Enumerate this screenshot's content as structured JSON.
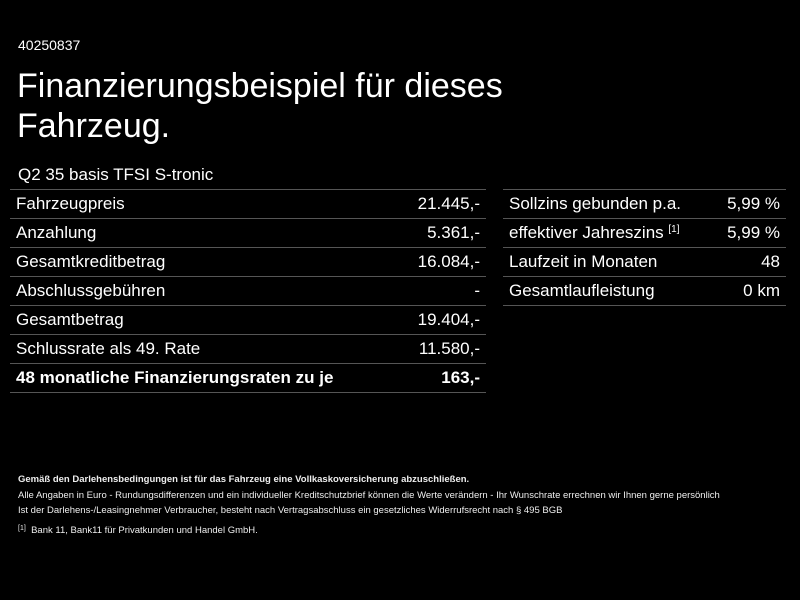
{
  "id": "40250837",
  "title": "Finanzierungsbeispiel für dieses Fahrzeug.",
  "model": "Q2 35 basis TFSI S-tronic",
  "left_rows": [
    {
      "label": "Fahrzeugpreis",
      "value": "21.445,-"
    },
    {
      "label": "Anzahlung",
      "value": "5.361,-"
    },
    {
      "label": "Gesamtkreditbetrag",
      "value": "16.084,-"
    },
    {
      "label": "Abschlussgebühren",
      "value": "-"
    },
    {
      "label": "Gesamtbetrag",
      "value": "19.404,-"
    },
    {
      "label": "Schlussrate als 49. Rate",
      "value": "11.580,-"
    },
    {
      "label": "48 monatliche Finanzierungsraten zu je",
      "value": "163,-"
    }
  ],
  "right_rows": [
    {
      "label": "Sollzins gebunden p.a.",
      "value": "5,99 %"
    },
    {
      "label": "effektiver Jahreszins",
      "sup": "[1]",
      "value": "5,99 %"
    },
    {
      "label": "Laufzeit in Monaten",
      "value": "48"
    },
    {
      "label": "Gesamtlaufleistung",
      "value": "0 km"
    }
  ],
  "footer": {
    "bold": "Gemäß den Darlehensbedingungen ist für das Fahrzeug eine Vollkaskoversicherung abzuschließen.",
    "line1": "Alle Angaben in Euro - Rundungsdifferenzen und ein individueller Kreditschutzbrief können die Werte verändern - Ihr Wunschrate errechnen wir Ihnen gerne persönlich",
    "line2": "Ist der Darlehens-/Leasingnehmer Verbraucher, besteht nach Vertragsabschluss ein gesetzliches Widerrufsrecht nach § 495 BGB",
    "note_mark": "[1]",
    "note": "Bank 11, Bank11 für Privatkunden und Handel GmbH."
  }
}
